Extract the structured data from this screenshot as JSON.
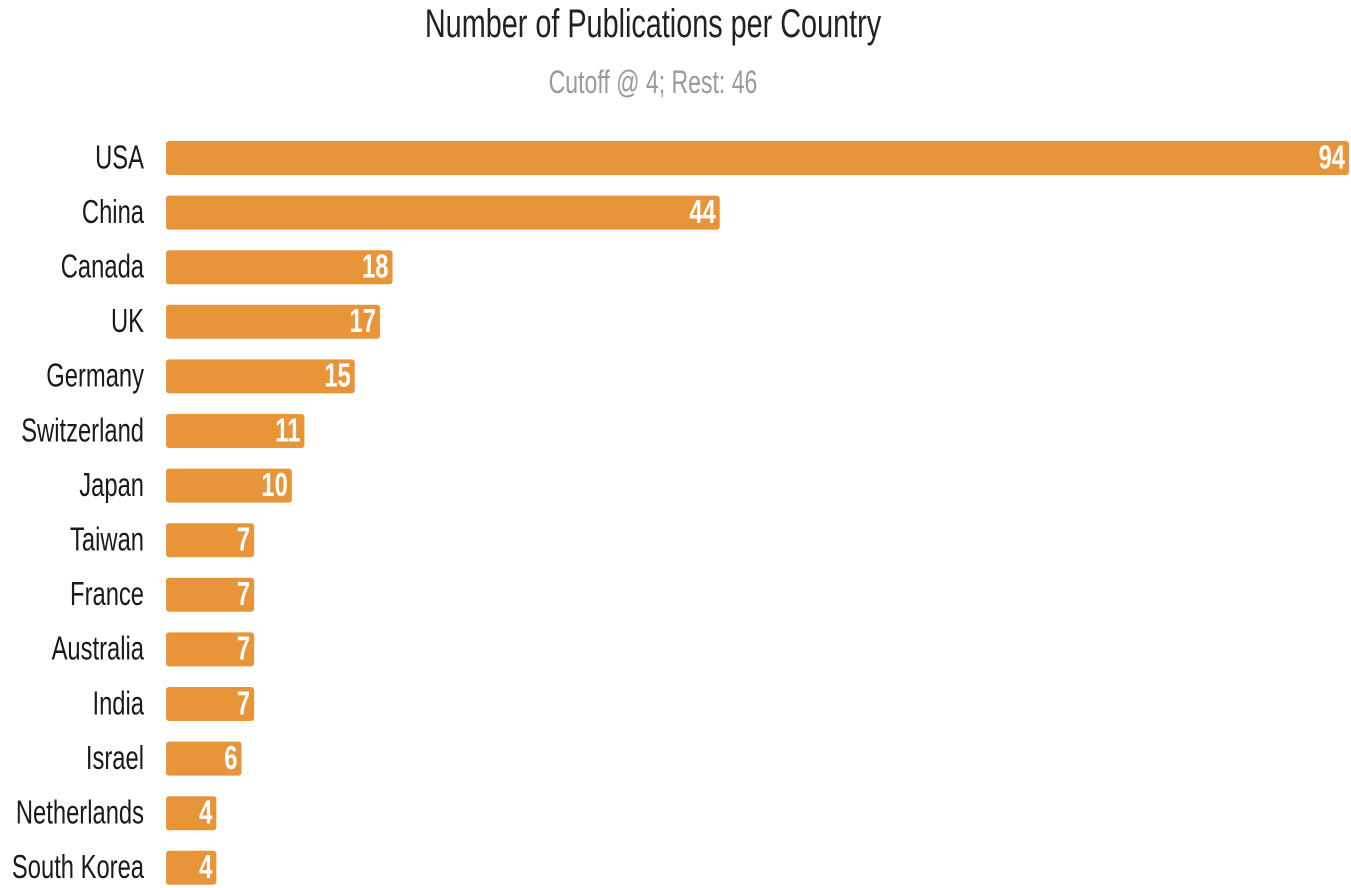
{
  "chart": {
    "title": "Number of Publications per Country",
    "subtitle": "Cutoff @ 4; Rest: 46",
    "bar_color": "#e8953a",
    "label_color": "#1a1a1a",
    "value_label_color": "#ffffff"
  },
  "chart_data": {
    "type": "bar",
    "orientation": "horizontal",
    "title": "Number of Publications per Country",
    "subtitle": "Cutoff @ 4; Rest: 46",
    "categories": [
      "USA",
      "China",
      "Canada",
      "UK",
      "Germany",
      "Switzerland",
      "Japan",
      "Taiwan",
      "France",
      "Australia",
      "India",
      "Israel",
      "Netherlands",
      "South Korea"
    ],
    "values": [
      94,
      44,
      18,
      17,
      15,
      11,
      10,
      7,
      7,
      7,
      7,
      6,
      4,
      4
    ],
    "xlabel": "",
    "ylabel": "",
    "xlim": [
      0,
      94
    ],
    "grid": false,
    "legend": "none",
    "data_labels": true
  }
}
